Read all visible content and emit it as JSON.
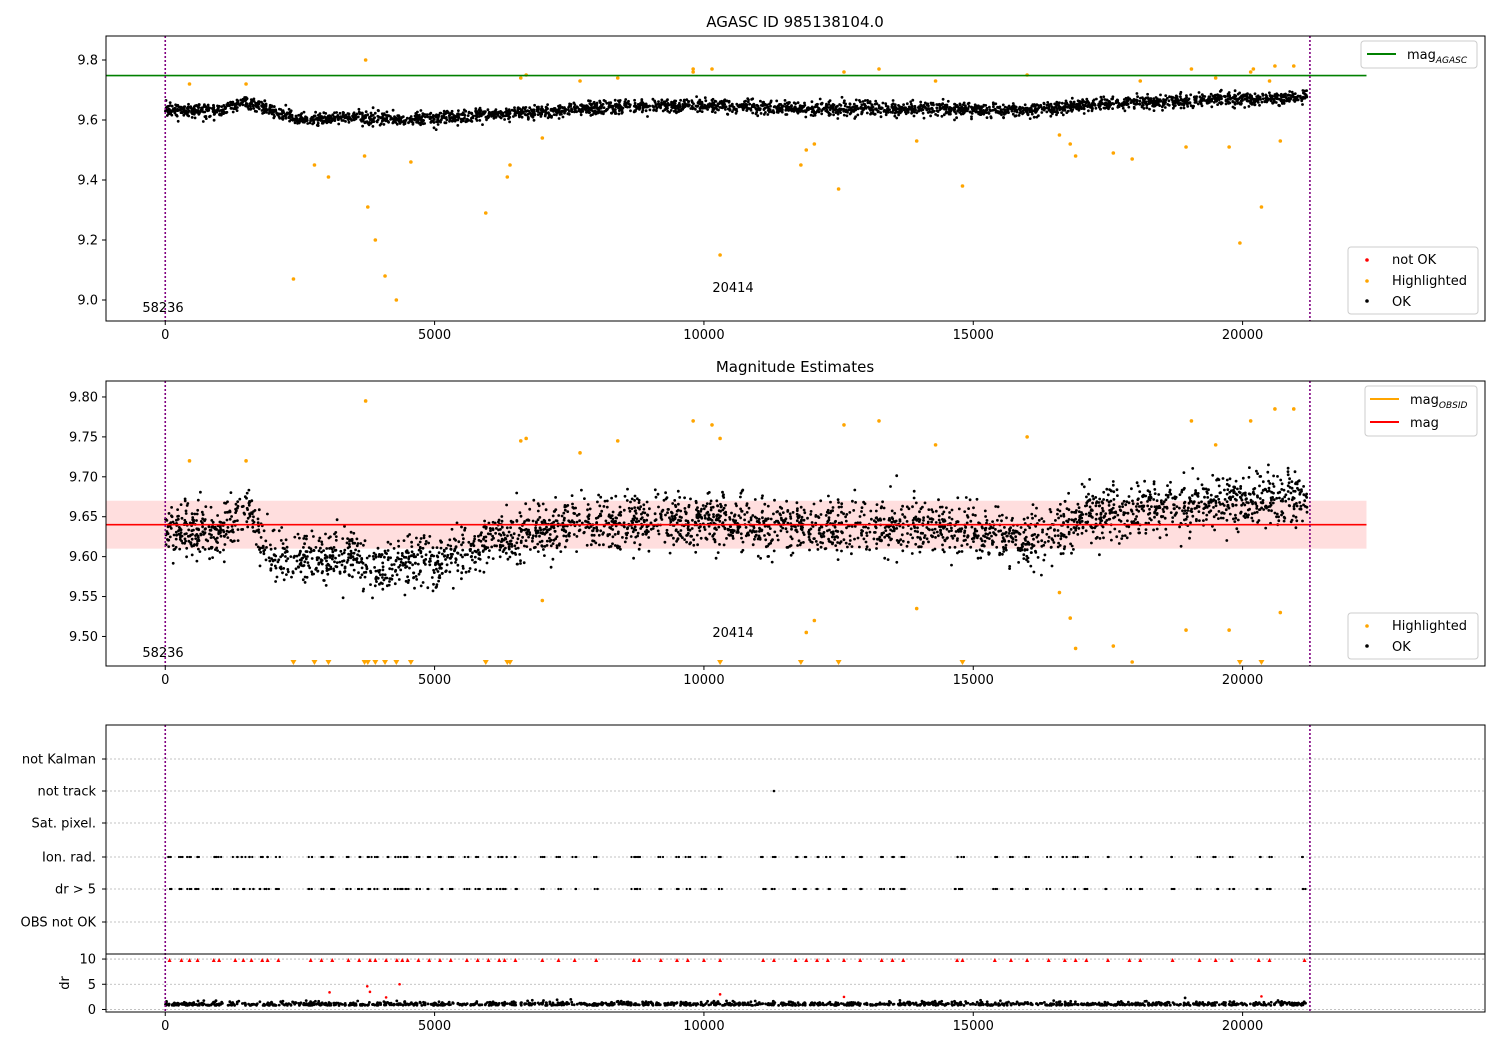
{
  "colors": {
    "ok": "#000000",
    "highlighted": "#ffa500",
    "not_ok": "#ff0000",
    "agasc_line": "#008000",
    "mag_line": "#ff0000",
    "band": "#ffb6b6",
    "obs_marker": "#800080",
    "grid": "#b0b0b0"
  },
  "chart_data": [
    {
      "type": "scatter",
      "title": "AGASC ID 985138104.0",
      "xlim": [
        -1100,
        24500
      ],
      "ylim": [
        8.93,
        9.88
      ],
      "xticks": [
        0,
        5000,
        10000,
        15000,
        20000
      ],
      "xtick_labels": [
        "0",
        "5000",
        "10000",
        "15000",
        "20000"
      ],
      "yticks": [
        9.0,
        9.2,
        9.4,
        9.6,
        9.8
      ],
      "ytick_labels": [
        "9.0",
        "9.2",
        "9.4",
        "9.6",
        "9.8"
      ],
      "hline": {
        "label": "mag",
        "sub": "AGASC",
        "y": 9.748,
        "x_range": [
          -1100,
          22300
        ]
      },
      "obs_lines": [
        0,
        21250
      ],
      "annotations": [
        {
          "text": "58236",
          "x": 0,
          "y": 8.96
        },
        {
          "text": "20414",
          "x": 10250,
          "y": 9.025
        }
      ],
      "legend_top": [
        {
          "kind": "line",
          "label": "mag",
          "sub": "AGASC",
          "color": "#008000"
        }
      ],
      "legend_bottom": [
        {
          "label": "not OK",
          "color": "#ff0000"
        },
        {
          "label": "Highlighted",
          "color": "#ffa500"
        },
        {
          "label": "OK",
          "color": "#000000"
        }
      ],
      "series": [
        {
          "name": "OK",
          "trend_x": [
            0,
            1000,
            1500,
            2500,
            3500,
            4500,
            6000,
            8000,
            10000,
            12000,
            14000,
            16000,
            17000,
            19000,
            21200
          ],
          "trend_y": [
            9.635,
            9.63,
            9.66,
            9.6,
            9.61,
            9.6,
            9.615,
            9.64,
            9.65,
            9.635,
            9.64,
            9.63,
            9.65,
            9.665,
            9.675
          ],
          "spread": 0.02
        },
        {
          "name": "Highlighted",
          "points": [
            [
              450,
              9.72
            ],
            [
              1500,
              9.72
            ],
            [
              2380,
              9.07
            ],
            [
              2770,
              9.45
            ],
            [
              3030,
              9.41
            ],
            [
              3700,
              9.48
            ],
            [
              3720,
              9.8
            ],
            [
              3760,
              9.31
            ],
            [
              3900,
              9.2
            ],
            [
              4080,
              9.08
            ],
            [
              4290,
              9.0
            ],
            [
              4560,
              9.46
            ],
            [
              5950,
              9.29
            ],
            [
              6350,
              9.41
            ],
            [
              6400,
              9.45
            ],
            [
              6600,
              9.74
            ],
            [
              6700,
              9.75
            ],
            [
              7000,
              9.54
            ],
            [
              7700,
              9.73
            ],
            [
              8400,
              9.74
            ],
            [
              9800,
              9.76
            ],
            [
              9800,
              9.77
            ],
            [
              10150,
              9.77
            ],
            [
              10300,
              9.15
            ],
            [
              11800,
              9.45
            ],
            [
              11900,
              9.5
            ],
            [
              12050,
              9.52
            ],
            [
              12500,
              9.37
            ],
            [
              12600,
              9.76
            ],
            [
              13250,
              9.77
            ],
            [
              13950,
              9.53
            ],
            [
              14300,
              9.73
            ],
            [
              14800,
              9.38
            ],
            [
              16000,
              9.75
            ],
            [
              16600,
              9.55
            ],
            [
              16800,
              9.52
            ],
            [
              16900,
              9.48
            ],
            [
              17600,
              9.49
            ],
            [
              17950,
              9.47
            ],
            [
              18100,
              9.73
            ],
            [
              18950,
              9.51
            ],
            [
              19050,
              9.77
            ],
            [
              19500,
              9.74
            ],
            [
              19750,
              9.51
            ],
            [
              19950,
              9.19
            ],
            [
              20150,
              9.76
            ],
            [
              20200,
              9.77
            ],
            [
              20350,
              9.31
            ],
            [
              20500,
              9.73
            ],
            [
              20600,
              9.78
            ],
            [
              20700,
              9.53
            ],
            [
              20950,
              9.78
            ]
          ]
        }
      ]
    },
    {
      "type": "scatter",
      "title": "Magnitude Estimates",
      "xlim": [
        -1100,
        24500
      ],
      "ylim": [
        9.463,
        9.82
      ],
      "xticks": [
        0,
        5000,
        10000,
        15000,
        20000
      ],
      "xtick_labels": [
        "0",
        "5000",
        "10000",
        "15000",
        "20000"
      ],
      "yticks": [
        9.5,
        9.55,
        9.6,
        9.65,
        9.7,
        9.75,
        9.8
      ],
      "ytick_labels": [
        "9.50",
        "9.55",
        "9.60",
        "9.65",
        "9.70",
        "9.75",
        "9.80"
      ],
      "hline": {
        "label": "mag",
        "y": 9.64,
        "x_range": [
          -1100,
          22300
        ]
      },
      "band": {
        "y0": 9.61,
        "y1": 9.67,
        "x_range": [
          -1100,
          22300
        ]
      },
      "obs_lines": [
        0,
        21250
      ],
      "annotations": [
        {
          "text": "58236",
          "x": 0,
          "y": 9.475
        },
        {
          "text": "20414",
          "x": 10250,
          "y": 9.5
        }
      ],
      "legend_top": [
        {
          "kind": "line",
          "label": "mag",
          "sub": "OBSID",
          "color": "#ffa500"
        },
        {
          "kind": "line",
          "label": "mag",
          "color": "#ff0000"
        }
      ],
      "legend_bottom": [
        {
          "label": "Highlighted",
          "color": "#ffa500"
        },
        {
          "label": "OK",
          "color": "#000000"
        }
      ],
      "series": [
        {
          "name": "OK",
          "trend_x": [
            0,
            1000,
            1500,
            2000,
            3000,
            3500,
            4000,
            4500,
            5000,
            6000,
            8000,
            10000,
            12000,
            14000,
            16000,
            16500,
            17000,
            19000,
            21200
          ],
          "trend_y": [
            9.635,
            9.63,
            9.66,
            9.6,
            9.6,
            9.6,
            9.585,
            9.6,
            9.59,
            9.62,
            9.64,
            9.645,
            9.635,
            9.64,
            9.62,
            9.63,
            9.65,
            9.665,
            9.675
          ],
          "spread": 0.03
        },
        {
          "name": "Highlighted",
          "points": [
            [
              450,
              9.72
            ],
            [
              1500,
              9.72
            ],
            [
              3720,
              9.795
            ],
            [
              6600,
              9.745
            ],
            [
              6700,
              9.748
            ],
            [
              7000,
              9.545
            ],
            [
              7700,
              9.73
            ],
            [
              8400,
              9.745
            ],
            [
              9800,
              9.77
            ],
            [
              10150,
              9.765
            ],
            [
              10300,
              9.748
            ],
            [
              12050,
              9.52
            ],
            [
              11900,
              9.505
            ],
            [
              12600,
              9.765
            ],
            [
              13250,
              9.77
            ],
            [
              13950,
              9.535
            ],
            [
              14300,
              9.74
            ],
            [
              16000,
              9.75
            ],
            [
              16600,
              9.555
            ],
            [
              16800,
              9.523
            ],
            [
              16900,
              9.485
            ],
            [
              17600,
              9.488
            ],
            [
              17950,
              9.468
            ],
            [
              18950,
              9.508
            ],
            [
              19050,
              9.77
            ],
            [
              19500,
              9.74
            ],
            [
              19750,
              9.508
            ],
            [
              20150,
              9.77
            ],
            [
              20600,
              9.785
            ],
            [
              20700,
              9.53
            ],
            [
              20950,
              9.785
            ]
          ]
        },
        {
          "name": "Highlighted (out of range)",
          "x": [
            2380,
            2770,
            3030,
            3700,
            3760,
            3900,
            4080,
            4290,
            4560,
            5950,
            6350,
            6400,
            10300,
            11800,
            12500,
            14800,
            19950,
            20350
          ]
        }
      ]
    },
    {
      "type": "scatter",
      "title": "",
      "xlim": [
        -1100,
        24500
      ],
      "categories": [
        "not Kalman",
        "not track",
        "Sat. pixel.",
        "Ion. rad.",
        "dr > 5",
        "OBS not OK"
      ],
      "obs_lines": [
        0,
        21250
      ],
      "flag_x": [
        80,
        300,
        450,
        600,
        900,
        1000,
        1300,
        1450,
        1600,
        1800,
        1900,
        2100,
        2700,
        2900,
        3100,
        3400,
        3600,
        3800,
        3900,
        4100,
        4300,
        4400,
        4500,
        4700,
        4900,
        5100,
        5300,
        5600,
        5800,
        6000,
        6200,
        6300,
        6500,
        7000,
        7300,
        7600,
        8000,
        8700,
        8800,
        9200,
        9500,
        9700,
        10000,
        10300,
        11100,
        11300,
        11700,
        11900,
        12100,
        12300,
        12600,
        12900,
        13300,
        13500,
        13700,
        14700,
        14800,
        15400,
        15700,
        16000,
        16400,
        16700,
        16900,
        17100,
        17500,
        17900,
        18100,
        18700,
        19200,
        19500,
        19800,
        20300,
        20500,
        21150
      ],
      "not_track_x": [
        11300
      ],
      "dr": {
        "ylim": [
          -0.5,
          11
        ],
        "yticks": [
          0,
          5,
          10
        ],
        "ytick_labels": [
          "0",
          "5",
          "10"
        ],
        "ylabel": "dr",
        "xticks": [
          0,
          5000,
          10000,
          15000,
          20000
        ],
        "xtick_labels": [
          "0",
          "5000",
          "10000",
          "15000",
          "20000"
        ],
        "baseline": 0.8,
        "outliers": [
          [
            3050,
            3.4
          ],
          [
            3750,
            4.6
          ],
          [
            3800,
            3.5
          ],
          [
            4100,
            2.4
          ],
          [
            4350,
            5.0
          ],
          [
            10300,
            3.0
          ],
          [
            12600,
            2.5
          ],
          [
            20350,
            2.6
          ]
        ]
      }
    }
  ]
}
